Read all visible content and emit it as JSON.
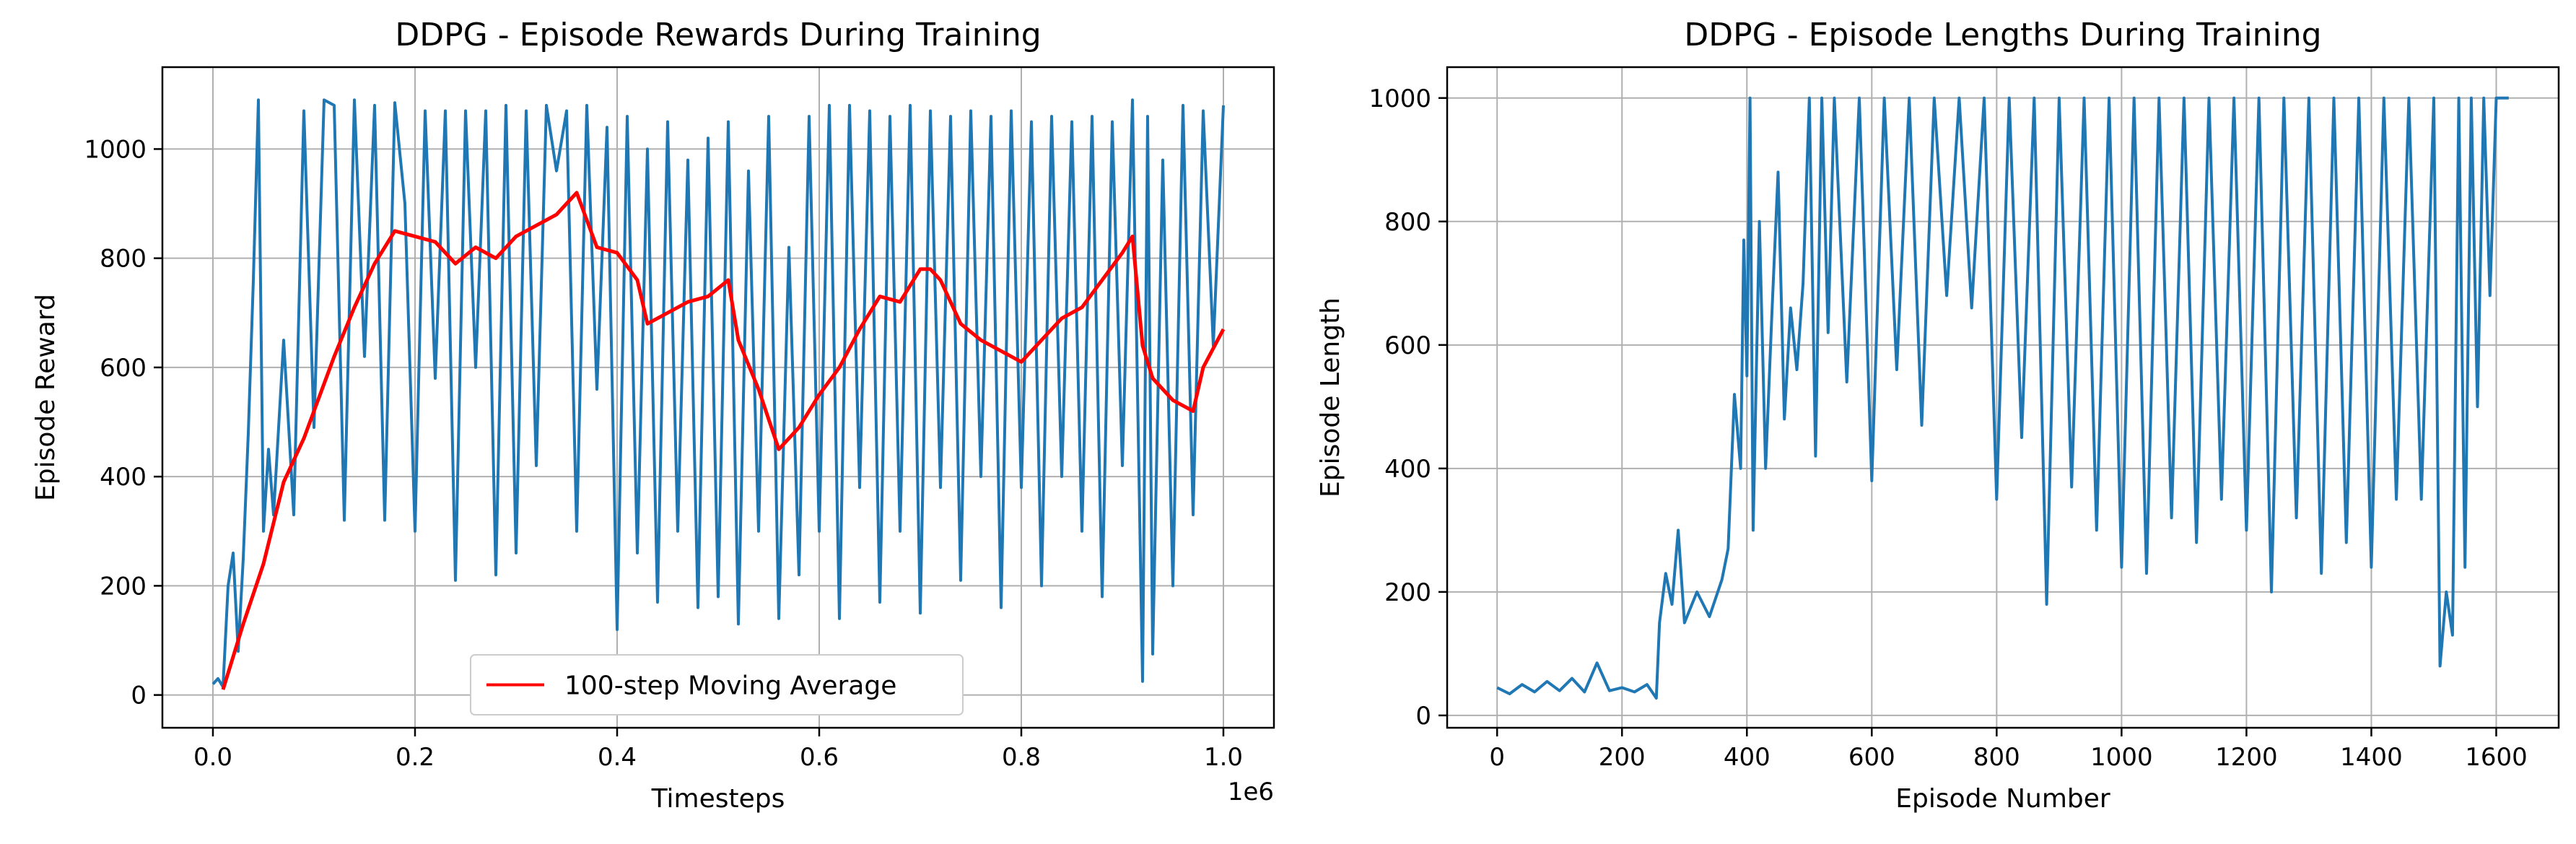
{
  "chart_data": [
    {
      "type": "line",
      "title": "DDPG - Episode Rewards During Training",
      "xlabel": "Timesteps",
      "ylabel": "Episode Reward",
      "x_offset_label": "1e6",
      "xlim": [
        -0.05,
        1.05
      ],
      "ylim": [
        -60,
        1150
      ],
      "xticks": [
        0.0,
        0.2,
        0.4,
        0.6,
        0.8,
        1.0
      ],
      "xtick_labels": [
        "0.0",
        "0.2",
        "0.4",
        "0.6",
        "0.8",
        "1.0"
      ],
      "yticks": [
        0,
        200,
        400,
        600,
        800,
        1000
      ],
      "ytick_labels": [
        "0",
        "200",
        "400",
        "600",
        "800",
        "1000"
      ],
      "grid": true,
      "legend": {
        "placement": "lower-center"
      },
      "series": [
        {
          "color": "#1f77b4",
          "sample_points": [
            [
              0.0,
              20
            ],
            [
              0.005,
              30
            ],
            [
              0.01,
              15
            ],
            [
              0.015,
              200
            ],
            [
              0.02,
              260
            ],
            [
              0.025,
              80
            ],
            [
              0.03,
              250
            ],
            [
              0.035,
              480
            ],
            [
              0.04,
              760
            ],
            [
              0.045,
              1090
            ],
            [
              0.05,
              300
            ],
            [
              0.055,
              450
            ],
            [
              0.06,
              330
            ],
            [
              0.07,
              650
            ],
            [
              0.08,
              330
            ],
            [
              0.09,
              1070
            ],
            [
              0.1,
              490
            ],
            [
              0.11,
              1090
            ],
            [
              0.12,
              1080
            ],
            [
              0.13,
              320
            ],
            [
              0.14,
              1090
            ],
            [
              0.15,
              620
            ],
            [
              0.16,
              1080
            ],
            [
              0.17,
              320
            ],
            [
              0.18,
              1085
            ],
            [
              0.19,
              900
            ],
            [
              0.2,
              300
            ],
            [
              0.21,
              1070
            ],
            [
              0.22,
              580
            ],
            [
              0.23,
              1070
            ],
            [
              0.24,
              210
            ],
            [
              0.25,
              1070
            ],
            [
              0.26,
              600
            ],
            [
              0.27,
              1070
            ],
            [
              0.28,
              220
            ],
            [
              0.29,
              1080
            ],
            [
              0.3,
              260
            ],
            [
              0.31,
              1070
            ],
            [
              0.32,
              420
            ],
            [
              0.33,
              1080
            ],
            [
              0.34,
              960
            ],
            [
              0.35,
              1070
            ],
            [
              0.36,
              300
            ],
            [
              0.37,
              1080
            ],
            [
              0.38,
              560
            ],
            [
              0.39,
              1040
            ],
            [
              0.4,
              120
            ],
            [
              0.41,
              1060
            ],
            [
              0.42,
              260
            ],
            [
              0.43,
              1000
            ],
            [
              0.44,
              170
            ],
            [
              0.45,
              1050
            ],
            [
              0.46,
              300
            ],
            [
              0.47,
              980
            ],
            [
              0.48,
              160
            ],
            [
              0.49,
              1020
            ],
            [
              0.5,
              180
            ],
            [
              0.51,
              1050
            ],
            [
              0.52,
              130
            ],
            [
              0.53,
              960
            ],
            [
              0.54,
              300
            ],
            [
              0.55,
              1060
            ],
            [
              0.56,
              140
            ],
            [
              0.57,
              820
            ],
            [
              0.58,
              220
            ],
            [
              0.59,
              1060
            ],
            [
              0.6,
              300
            ],
            [
              0.61,
              1080
            ],
            [
              0.62,
              140
            ],
            [
              0.63,
              1080
            ],
            [
              0.64,
              380
            ],
            [
              0.65,
              1070
            ],
            [
              0.66,
              170
            ],
            [
              0.67,
              1060
            ],
            [
              0.68,
              300
            ],
            [
              0.69,
              1080
            ],
            [
              0.7,
              150
            ],
            [
              0.71,
              1070
            ],
            [
              0.72,
              380
            ],
            [
              0.73,
              1060
            ],
            [
              0.74,
              210
            ],
            [
              0.75,
              1070
            ],
            [
              0.76,
              400
            ],
            [
              0.77,
              1060
            ],
            [
              0.78,
              160
            ],
            [
              0.79,
              1070
            ],
            [
              0.8,
              380
            ],
            [
              0.81,
              1050
            ],
            [
              0.82,
              200
            ],
            [
              0.83,
              1060
            ],
            [
              0.84,
              400
            ],
            [
              0.85,
              1050
            ],
            [
              0.86,
              300
            ],
            [
              0.87,
              1060
            ],
            [
              0.88,
              180
            ],
            [
              0.89,
              1050
            ],
            [
              0.9,
              420
            ],
            [
              0.91,
              1090
            ],
            [
              0.92,
              25
            ],
            [
              0.925,
              1060
            ],
            [
              0.93,
              75
            ],
            [
              0.94,
              980
            ],
            [
              0.95,
              200
            ],
            [
              0.96,
              1080
            ],
            [
              0.97,
              330
            ],
            [
              0.98,
              1070
            ],
            [
              0.99,
              640
            ],
            [
              1.0,
              1080
            ]
          ]
        },
        {
          "name": "100-step Moving Average",
          "color": "#ff0000",
          "sample_points": [
            [
              0.01,
              10
            ],
            [
              0.03,
              130
            ],
            [
              0.05,
              240
            ],
            [
              0.07,
              390
            ],
            [
              0.09,
              470
            ],
            [
              0.1,
              520
            ],
            [
              0.12,
              620
            ],
            [
              0.14,
              710
            ],
            [
              0.16,
              790
            ],
            [
              0.18,
              850
            ],
            [
              0.2,
              840
            ],
            [
              0.22,
              830
            ],
            [
              0.24,
              790
            ],
            [
              0.26,
              820
            ],
            [
              0.28,
              800
            ],
            [
              0.3,
              840
            ],
            [
              0.32,
              860
            ],
            [
              0.34,
              880
            ],
            [
              0.35,
              900
            ],
            [
              0.36,
              920
            ],
            [
              0.37,
              870
            ],
            [
              0.38,
              820
            ],
            [
              0.4,
              810
            ],
            [
              0.42,
              760
            ],
            [
              0.43,
              680
            ],
            [
              0.45,
              700
            ],
            [
              0.47,
              720
            ],
            [
              0.49,
              730
            ],
            [
              0.51,
              760
            ],
            [
              0.52,
              650
            ],
            [
              0.54,
              560
            ],
            [
              0.56,
              450
            ],
            [
              0.58,
              490
            ],
            [
              0.6,
              550
            ],
            [
              0.62,
              600
            ],
            [
              0.64,
              670
            ],
            [
              0.66,
              730
            ],
            [
              0.68,
              720
            ],
            [
              0.7,
              780
            ],
            [
              0.71,
              780
            ],
            [
              0.72,
              760
            ],
            [
              0.74,
              680
            ],
            [
              0.76,
              650
            ],
            [
              0.78,
              630
            ],
            [
              0.8,
              610
            ],
            [
              0.82,
              650
            ],
            [
              0.84,
              690
            ],
            [
              0.86,
              710
            ],
            [
              0.88,
              760
            ],
            [
              0.9,
              810
            ],
            [
              0.91,
              840
            ],
            [
              0.92,
              640
            ],
            [
              0.93,
              580
            ],
            [
              0.95,
              540
            ],
            [
              0.97,
              520
            ],
            [
              0.98,
              600
            ],
            [
              1.0,
              670
            ]
          ]
        }
      ]
    },
    {
      "type": "line",
      "title": "DDPG - Episode Lengths During Training",
      "xlabel": "Episode Number",
      "ylabel": "Episode Length",
      "xlim": [
        -80,
        1700
      ],
      "ylim": [
        -20,
        1050
      ],
      "xticks": [
        0,
        200,
        400,
        600,
        800,
        1000,
        1200,
        1400,
        1600
      ],
      "xtick_labels": [
        "0",
        "200",
        "400",
        "600",
        "800",
        "1000",
        "1200",
        "1400",
        "1600"
      ],
      "yticks": [
        0,
        200,
        400,
        600,
        800,
        1000
      ],
      "ytick_labels": [
        "0",
        "200",
        "400",
        "600",
        "800",
        "1000"
      ],
      "grid": true,
      "series": [
        {
          "color": "#1f77b4",
          "sample_points": [
            [
              0,
              45
            ],
            [
              20,
              35
            ],
            [
              40,
              50
            ],
            [
              60,
              38
            ],
            [
              80,
              55
            ],
            [
              100,
              40
            ],
            [
              120,
              60
            ],
            [
              140,
              38
            ],
            [
              160,
              85
            ],
            [
              180,
              40
            ],
            [
              200,
              45
            ],
            [
              220,
              38
            ],
            [
              240,
              50
            ],
            [
              255,
              28
            ],
            [
              260,
              150
            ],
            [
              270,
              230
            ],
            [
              280,
              180
            ],
            [
              290,
              300
            ],
            [
              300,
              150
            ],
            [
              320,
              200
            ],
            [
              340,
              160
            ],
            [
              360,
              220
            ],
            [
              370,
              270
            ],
            [
              380,
              520
            ],
            [
              390,
              400
            ],
            [
              395,
              770
            ],
            [
              400,
              550
            ],
            [
              405,
              1000
            ],
            [
              410,
              300
            ],
            [
              420,
              800
            ],
            [
              430,
              400
            ],
            [
              440,
              650
            ],
            [
              450,
              880
            ],
            [
              460,
              480
            ],
            [
              470,
              660
            ],
            [
              480,
              560
            ],
            [
              490,
              700
            ],
            [
              500,
              1000
            ],
            [
              510,
              420
            ],
            [
              520,
              1000
            ],
            [
              530,
              620
            ],
            [
              540,
              1000
            ],
            [
              560,
              540
            ],
            [
              580,
              1000
            ],
            [
              600,
              380
            ],
            [
              620,
              1000
            ],
            [
              640,
              560
            ],
            [
              660,
              1000
            ],
            [
              680,
              470
            ],
            [
              700,
              1000
            ],
            [
              720,
              680
            ],
            [
              740,
              1000
            ],
            [
              760,
              660
            ],
            [
              780,
              1000
            ],
            [
              800,
              350
            ],
            [
              820,
              1000
            ],
            [
              840,
              450
            ],
            [
              860,
              1000
            ],
            [
              880,
              180
            ],
            [
              900,
              1000
            ],
            [
              920,
              370
            ],
            [
              940,
              1000
            ],
            [
              960,
              300
            ],
            [
              980,
              1000
            ],
            [
              1000,
              240
            ],
            [
              1020,
              1000
            ],
            [
              1040,
              230
            ],
            [
              1060,
              1000
            ],
            [
              1080,
              320
            ],
            [
              1100,
              1000
            ],
            [
              1120,
              280
            ],
            [
              1140,
              1000
            ],
            [
              1160,
              350
            ],
            [
              1180,
              1000
            ],
            [
              1200,
              300
            ],
            [
              1220,
              1000
            ],
            [
              1240,
              200
            ],
            [
              1260,
              1000
            ],
            [
              1280,
              320
            ],
            [
              1300,
              1000
            ],
            [
              1320,
              230
            ],
            [
              1340,
              1000
            ],
            [
              1360,
              280
            ],
            [
              1380,
              1000
            ],
            [
              1400,
              240
            ],
            [
              1420,
              1000
            ],
            [
              1440,
              350
            ],
            [
              1460,
              1000
            ],
            [
              1480,
              350
            ],
            [
              1500,
              1000
            ],
            [
              1510,
              80
            ],
            [
              1520,
              200
            ],
            [
              1530,
              130
            ],
            [
              1540,
              1000
            ],
            [
              1550,
              240
            ],
            [
              1560,
              1000
            ],
            [
              1570,
              500
            ],
            [
              1580,
              1000
            ],
            [
              1590,
              680
            ],
            [
              1600,
              1000
            ],
            [
              1620,
              1000
            ]
          ]
        }
      ]
    }
  ]
}
